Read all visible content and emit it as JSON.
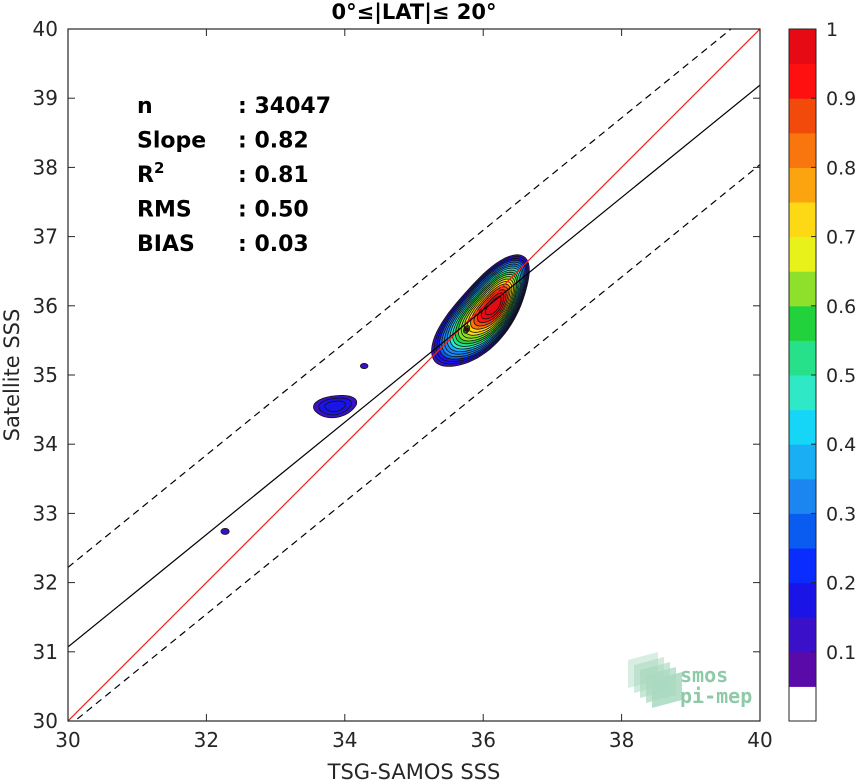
{
  "chart_data": {
    "type": "contour",
    "title": "0°≤|LAT|≤ 20°",
    "xlabel": "TSG-SAMOS SSS",
    "ylabel": "Satellite SSS",
    "xlim": [
      30,
      40
    ],
    "ylim": [
      30,
      40
    ],
    "xticks": [
      "30",
      "32",
      "34",
      "36",
      "38",
      "40"
    ],
    "yticks": [
      "30",
      "31",
      "32",
      "33",
      "34",
      "35",
      "36",
      "37",
      "38",
      "39",
      "40"
    ],
    "grid": false,
    "stats": [
      {
        "label": "n",
        "sep": ":",
        "value": "34047"
      },
      {
        "label": "Slope",
        "sep": ":",
        "value": "0.82"
      },
      {
        "label": "R",
        "sup": "2",
        "sep": ":",
        "value": "0.81"
      },
      {
        "label": "RMS",
        "sep": ":",
        "value": "0.50"
      },
      {
        "label": "BIAS",
        "sep": ":",
        "value": "0.03"
      }
    ],
    "lines": [
      {
        "kind": "identity",
        "color": "#e8231f",
        "style": "solid",
        "x": [
          30,
          40
        ],
        "y": [
          30,
          40
        ]
      },
      {
        "kind": "regression",
        "color": "#000000",
        "style": "solid",
        "x": [
          30,
          40
        ],
        "y": [
          31.07,
          39.19
        ]
      },
      {
        "kind": "regression-plus-offset",
        "color": "#000000",
        "style": "dashed",
        "x": [
          30,
          40
        ],
        "y": [
          32.22,
          40.34
        ]
      },
      {
        "kind": "regression-minus-offset",
        "color": "#000000",
        "style": "dashed",
        "x": [
          30,
          40
        ],
        "y": [
          29.92,
          38.04
        ]
      }
    ],
    "clusters": [
      {
        "name": "main",
        "cx": 35.98,
        "cy": 35.88,
        "peak": 1.0
      },
      {
        "name": "small-34",
        "cx": 33.86,
        "cy": 34.55,
        "peak": 0.2
      },
      {
        "name": "small-35",
        "cx": 34.28,
        "cy": 35.13,
        "peak": 0.08
      },
      {
        "name": "small-32",
        "cx": 32.27,
        "cy": 32.74,
        "peak": 0.08
      }
    ],
    "colorbar": {
      "min": 0,
      "max": 1,
      "ticks": [
        "0.1",
        "0.2",
        "0.3",
        "0.4",
        "0.5",
        "0.6",
        "0.7",
        "0.8",
        "0.9",
        "1"
      ],
      "levels": [
        0.05,
        0.1,
        0.15,
        0.2,
        0.25,
        0.3,
        0.35,
        0.4,
        0.45,
        0.5,
        0.55,
        0.6,
        0.65,
        0.7,
        0.75,
        0.8,
        0.85,
        0.9,
        0.95
      ],
      "colors": [
        "#ffffff",
        "#5a0aa8",
        "#3a10c8",
        "#1b14e6",
        "#0a2cff",
        "#0a5cf0",
        "#1b86f0",
        "#1aaef5",
        "#16d6f8",
        "#2fe8c6",
        "#26e08a",
        "#22d23c",
        "#8ee02a",
        "#e8f21a",
        "#fdd815",
        "#fba40f",
        "#f8760d",
        "#f24a0a",
        "#ff1010",
        "#e60a14",
        "#8a0a10"
      ]
    }
  },
  "logo": {
    "line1": "smos",
    "line2": "pi-mep"
  }
}
